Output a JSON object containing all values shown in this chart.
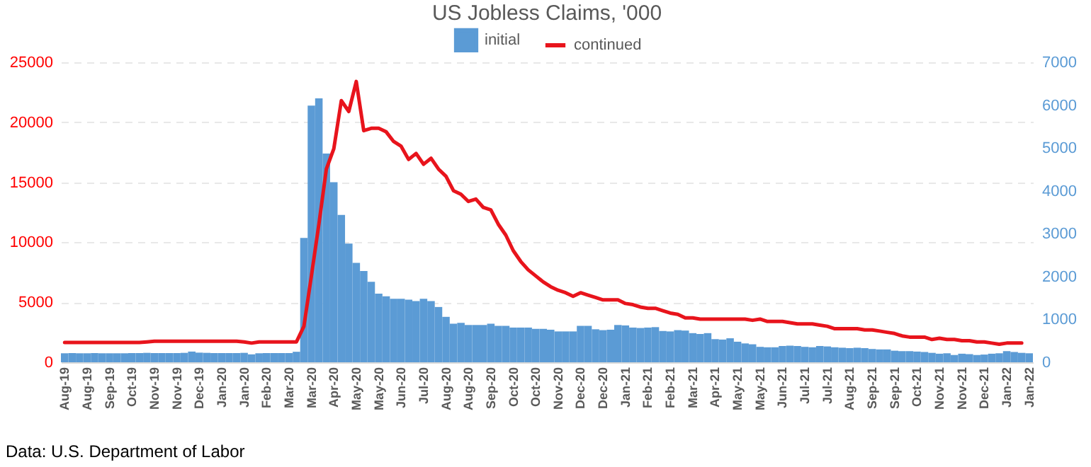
{
  "chart_data": {
    "type": "bar",
    "title": "US Jobless Claims, '000",
    "categories": [
      "Aug-19",
      null,
      null,
      "Aug-19",
      null,
      null,
      "Sep-19",
      null,
      null,
      "Oct-19",
      null,
      null,
      "Nov-19",
      null,
      null,
      "Nov-19",
      null,
      null,
      "Dec-19",
      null,
      null,
      "Jan-20",
      null,
      null,
      "Jan-20",
      null,
      null,
      "Feb-20",
      null,
      null,
      "Mar-20",
      null,
      null,
      "Mar-20",
      null,
      null,
      "Apr-20",
      null,
      null,
      "May-20",
      null,
      null,
      "May-20",
      null,
      null,
      "Jun-20",
      null,
      null,
      "Jul-20",
      null,
      null,
      "Aug-20",
      null,
      null,
      "Aug-20",
      null,
      null,
      "Sep-20",
      null,
      null,
      "Oct-20",
      null,
      null,
      "Oct-20",
      null,
      null,
      "Nov-20",
      null,
      null,
      "Dec-20",
      null,
      null,
      "Dec-20",
      null,
      null,
      "Jan-21",
      null,
      null,
      "Feb-21",
      null,
      null,
      "Feb-21",
      null,
      null,
      "Mar-21",
      null,
      null,
      "Apr-21",
      null,
      null,
      "May-21",
      null,
      null,
      "May-21",
      null,
      null,
      "Jun-21",
      null,
      null,
      "Jul-21",
      null,
      null,
      "Jul-21",
      null,
      null,
      "Aug-21",
      null,
      null,
      "Sep-21",
      null,
      null,
      "Sep-21",
      null,
      null,
      "Oct-21",
      null,
      null,
      "Nov-21",
      null,
      null,
      "Nov-21",
      null,
      null,
      "Dec-21",
      null,
      null,
      "Jan-22",
      null,
      null,
      "Jan-22"
    ],
    "series": [
      {
        "name": "initial",
        "axis": "y2",
        "color": "#5b9bd5",
        "values": [
          210,
          215,
          210,
          210,
          215,
          210,
          210,
          210,
          210,
          215,
          215,
          220,
          215,
          215,
          215,
          215,
          220,
          250,
          225,
          220,
          215,
          215,
          215,
          215,
          220,
          185,
          210,
          215,
          215,
          215,
          215,
          245,
          2900,
          5990,
          6160,
          4870,
          4200,
          3440,
          2770,
          2320,
          2130,
          1880,
          1600,
          1540,
          1480,
          1480,
          1460,
          1430,
          1480,
          1430,
          1290,
          1060,
          900,
          920,
          870,
          870,
          870,
          900,
          850,
          850,
          810,
          810,
          810,
          780,
          780,
          760,
          720,
          720,
          720,
          850,
          850,
          770,
          750,
          760,
          870,
          860,
          810,
          800,
          810,
          820,
          730,
          720,
          750,
          740,
          680,
          660,
          680,
          540,
          530,
          560,
          480,
          440,
          420,
          360,
          350,
          350,
          380,
          390,
          380,
          360,
          350,
          380,
          370,
          350,
          340,
          330,
          340,
          330,
          310,
          300,
          300,
          270,
          260,
          260,
          250,
          240,
          220,
          200,
          210,
          170,
          200,
          190,
          170,
          180,
          200,
          210,
          260,
          240,
          220,
          210
        ]
      },
      {
        "name": "continued",
        "type": "line",
        "axis": "y",
        "color": "#e8141c",
        "values": [
          1650,
          1650,
          1650,
          1650,
          1650,
          1650,
          1650,
          1650,
          1650,
          1650,
          1650,
          1700,
          1750,
          1750,
          1750,
          1750,
          1750,
          1750,
          1750,
          1750,
          1750,
          1750,
          1750,
          1750,
          1700,
          1600,
          1700,
          1700,
          1700,
          1700,
          1700,
          1700,
          3000,
          7200,
          11500,
          16100,
          17800,
          21800,
          20900,
          23400,
          19300,
          19500,
          19500,
          19200,
          18400,
          18000,
          16900,
          17400,
          16500,
          17000,
          16100,
          15500,
          14300,
          14000,
          13400,
          13600,
          12900,
          12700,
          11500,
          10600,
          9300,
          8400,
          7700,
          7200,
          6700,
          6300,
          6000,
          5800,
          5500,
          5800,
          5600,
          5400,
          5200,
          5200,
          5200,
          4900,
          4800,
          4600,
          4500,
          4500,
          4300,
          4100,
          4000,
          3700,
          3700,
          3600,
          3600,
          3600,
          3600,
          3600,
          3600,
          3600,
          3500,
          3600,
          3400,
          3400,
          3400,
          3300,
          3200,
          3200,
          3200,
          3100,
          3000,
          2800,
          2800,
          2800,
          2800,
          2700,
          2700,
          2600,
          2500,
          2400,
          2200,
          2100,
          2100,
          2100,
          1900,
          2000,
          1900,
          1900,
          1800,
          1800,
          1700,
          1700,
          1600,
          1500,
          1600,
          1600,
          1600,
          null
        ]
      }
    ],
    "ylim": [
      0,
      25000
    ],
    "yticks": [
      0,
      5000,
      10000,
      15000,
      20000,
      25000
    ],
    "y2lim": [
      0,
      7000
    ],
    "y2ticks": [
      0,
      1000,
      2000,
      3000,
      4000,
      5000,
      6000,
      7000
    ],
    "grid": "y",
    "legend": "top",
    "line_style": "solid",
    "marker": "none",
    "annotations": [
      "Data: U.S. Department of Labor"
    ]
  }
}
